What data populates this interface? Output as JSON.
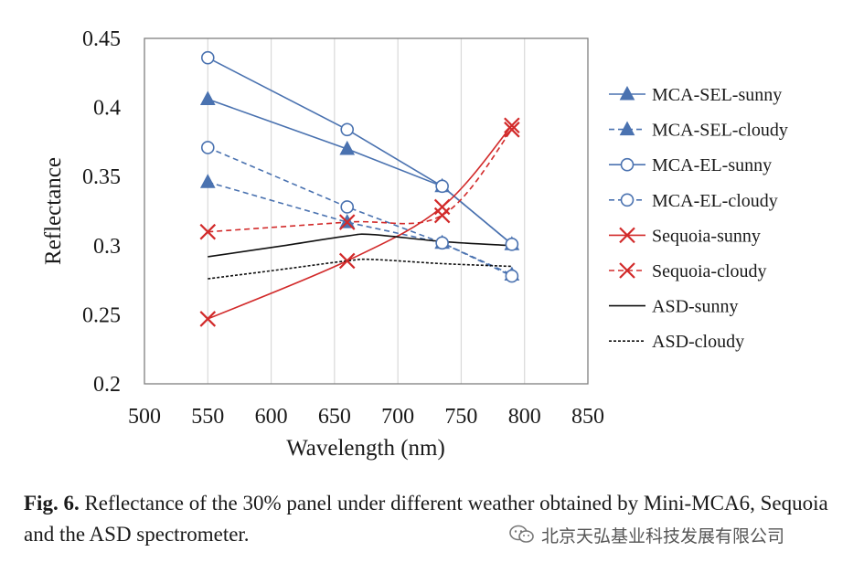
{
  "chart_data": {
    "type": "line",
    "title": "",
    "xlabel": "Wavelength (nm)",
    "ylabel": "Reflectance",
    "xlim": [
      500,
      850
    ],
    "ylim": [
      0.2,
      0.45
    ],
    "xticks": [
      "500",
      "550",
      "600",
      "650",
      "700",
      "750",
      "800",
      "850"
    ],
    "yticks": [
      "0.2",
      "0.25",
      "0.3",
      "0.35",
      "0.4",
      "0.45"
    ],
    "grid": "vertical",
    "legend_position": "right",
    "series": [
      {
        "name": "MCA-SEL-sunny",
        "color": "#4a72b0",
        "marker": "triangle",
        "line": "solid",
        "smooth": false,
        "x": [
          550,
          660,
          735,
          790
        ],
        "y": [
          0.406,
          0.37,
          0.343,
          0.301
        ]
      },
      {
        "name": "MCA-SEL-cloudy",
        "color": "#4a72b0",
        "marker": "triangle",
        "line": "dashed",
        "smooth": false,
        "x": [
          550,
          660,
          735,
          790
        ],
        "y": [
          0.346,
          0.317,
          0.302,
          0.279
        ]
      },
      {
        "name": "MCA-EL-sunny",
        "color": "#4a72b0",
        "marker": "circle",
        "line": "solid",
        "smooth": false,
        "x": [
          550,
          660,
          735,
          790
        ],
        "y": [
          0.436,
          0.384,
          0.343,
          0.301
        ]
      },
      {
        "name": "MCA-EL-cloudy",
        "color": "#4a72b0",
        "marker": "circle",
        "line": "dashed",
        "smooth": false,
        "x": [
          550,
          660,
          735,
          790
        ],
        "y": [
          0.371,
          0.328,
          0.302,
          0.278
        ]
      },
      {
        "name": "Sequoia-sunny",
        "color": "#d22a2a",
        "marker": "x",
        "line": "solid",
        "smooth": true,
        "x": [
          550,
          660,
          735,
          790
        ],
        "y": [
          0.247,
          0.289,
          0.328,
          0.387
        ]
      },
      {
        "name": "Sequoia-cloudy",
        "color": "#d22a2a",
        "marker": "x",
        "line": "dashed",
        "smooth": true,
        "x": [
          550,
          660,
          735,
          790
        ],
        "y": [
          0.31,
          0.317,
          0.322,
          0.384
        ]
      },
      {
        "name": "ASD-sunny",
        "color": "#111111",
        "marker": "none",
        "line": "solid",
        "smooth": true,
        "x": [
          550,
          610,
          660,
          680,
          735,
          790
        ],
        "y": [
          0.292,
          0.3,
          0.307,
          0.308,
          0.303,
          0.3
        ]
      },
      {
        "name": "ASD-cloudy",
        "color": "#111111",
        "marker": "none",
        "line": "dotted",
        "smooth": true,
        "x": [
          550,
          610,
          660,
          680,
          735,
          790
        ],
        "y": [
          0.276,
          0.283,
          0.289,
          0.29,
          0.287,
          0.285
        ]
      }
    ]
  },
  "caption": {
    "label": "Fig. 6.",
    "text": " Reflectance of the 30% panel under different weather obtained by Mini-MCA6, Sequoia and the ASD spectrometer."
  },
  "watermark": {
    "text": "北京天弘基业科技发展有限公司",
    "icon": "wechat-icon"
  }
}
